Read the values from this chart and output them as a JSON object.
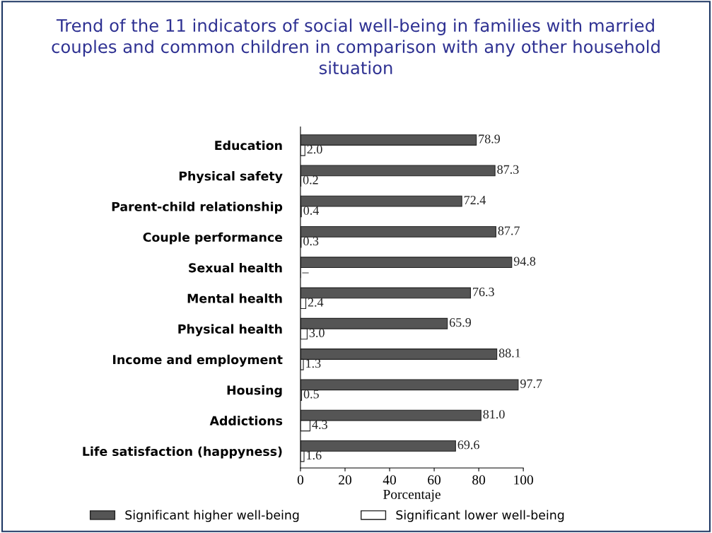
{
  "chart_data": {
    "type": "bar",
    "orientation": "horizontal",
    "title": "Trend of the 11 indicators of social well-being in families with married couples and common children in comparison with any other household situation",
    "xlabel": "Porcentaje",
    "categories": [
      "Education",
      "Physical safety",
      "Parent-child relationship",
      "Couple performance",
      "Sexual health",
      "Mental health",
      "Physical health",
      "Income and employment",
      "Housing",
      "Addictions",
      "Life satisfaction (happyness)"
    ],
    "series": [
      {
        "name": "Significant higher well-being",
        "color": "#555555",
        "values": [
          78.9,
          87.3,
          72.4,
          87.7,
          94.8,
          76.3,
          65.9,
          88.1,
          97.7,
          81.0,
          69.6
        ],
        "value_labels": [
          "78.9",
          "87.3",
          "72.4",
          "87.7",
          "94.8",
          "76.3",
          "65.9",
          "88.1",
          "97.7",
          "81.0",
          "69.6"
        ]
      },
      {
        "name": "Significant lower well-being",
        "color": "#ffffff",
        "values": [
          2.0,
          0.2,
          0.4,
          0.3,
          null,
          2.4,
          3.0,
          1.3,
          0.5,
          4.3,
          1.6
        ],
        "value_labels": [
          "2.0",
          "0.2",
          "0.4",
          "0.3",
          "–",
          "2.4",
          "3.0",
          "1.3",
          "0.5",
          "4.3",
          "1.6"
        ]
      }
    ],
    "xlim": [
      0,
      100
    ],
    "xticks": [
      0,
      20,
      40,
      60,
      80,
      100
    ],
    "grid": false,
    "legend": "bottom"
  }
}
